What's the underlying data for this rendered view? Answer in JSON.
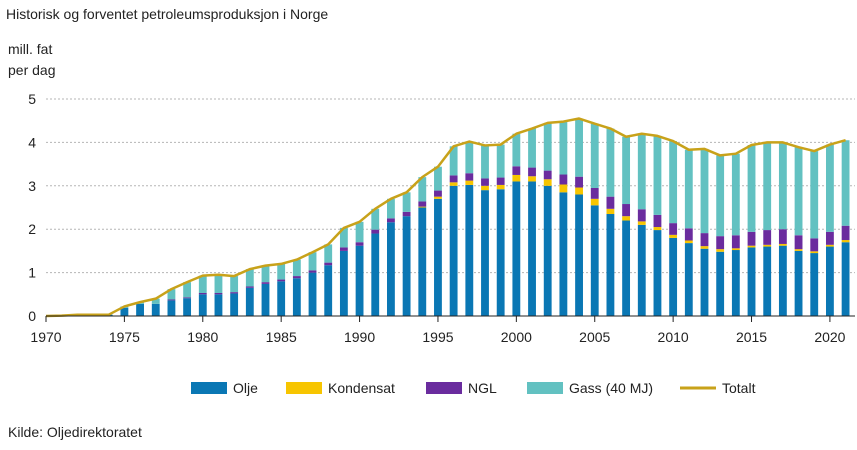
{
  "chart_data": {
    "type": "bar",
    "title": "Historisk og forventet petroleumsproduksjon i Norge",
    "ylabel_line1": "mill. fat",
    "ylabel_line2": "per dag",
    "ylim": [
      0,
      5
    ],
    "yticks": [
      0,
      1,
      2,
      3,
      4,
      5
    ],
    "xticks": [
      1970,
      1975,
      1980,
      1985,
      1990,
      1995,
      2000,
      2005,
      2010,
      2015,
      2020
    ],
    "grid": true,
    "legend_position": "bottom",
    "source": "Kilde: Oljedirektoratet",
    "x": [
      1971,
      1972,
      1973,
      1974,
      1975,
      1976,
      1977,
      1978,
      1979,
      1980,
      1981,
      1982,
      1983,
      1984,
      1985,
      1986,
      1987,
      1988,
      1989,
      1990,
      1991,
      1992,
      1993,
      1994,
      1995,
      1996,
      1997,
      1998,
      1999,
      2000,
      2001,
      2002,
      2003,
      2004,
      2005,
      2006,
      2007,
      2008,
      2009,
      2010,
      2011,
      2012,
      2013,
      2014,
      2015,
      2016,
      2017,
      2018,
      2019,
      2020,
      2021
    ],
    "series": [
      {
        "name": "Olje",
        "color": "#0a77b4",
        "stacked": true,
        "values": [
          0.01,
          0.03,
          0.03,
          0.03,
          0.19,
          0.28,
          0.28,
          0.36,
          0.41,
          0.5,
          0.5,
          0.52,
          0.65,
          0.74,
          0.8,
          0.87,
          1.0,
          1.17,
          1.5,
          1.62,
          1.9,
          2.16,
          2.3,
          2.5,
          2.7,
          3.0,
          3.02,
          2.9,
          2.92,
          3.1,
          3.1,
          3.0,
          2.85,
          2.8,
          2.55,
          2.35,
          2.2,
          2.1,
          1.98,
          1.8,
          1.68,
          1.55,
          1.48,
          1.52,
          1.58,
          1.6,
          1.62,
          1.5,
          1.45,
          1.6,
          1.7
        ]
      },
      {
        "name": "Kondensat",
        "color": "#f7c500",
        "stacked": true,
        "values": [
          0,
          0,
          0,
          0,
          0,
          0,
          0,
          0,
          0,
          0,
          0,
          0,
          0,
          0,
          0,
          0,
          0,
          0,
          0,
          0,
          0,
          0,
          0,
          0.02,
          0.05,
          0.08,
          0.1,
          0.1,
          0.1,
          0.15,
          0.12,
          0.15,
          0.18,
          0.16,
          0.15,
          0.12,
          0.1,
          0.08,
          0.07,
          0.07,
          0.06,
          0.06,
          0.06,
          0.04,
          0.04,
          0.04,
          0.04,
          0.04,
          0.04,
          0.04,
          0.05
        ]
      },
      {
        "name": "NGL",
        "color": "#6a2c9e",
        "stacked": true,
        "values": [
          0,
          0,
          0,
          0,
          0,
          0,
          0,
          0.02,
          0.02,
          0.03,
          0.03,
          0.03,
          0.03,
          0.04,
          0.04,
          0.05,
          0.05,
          0.06,
          0.08,
          0.08,
          0.09,
          0.09,
          0.1,
          0.12,
          0.14,
          0.16,
          0.17,
          0.17,
          0.17,
          0.2,
          0.2,
          0.2,
          0.23,
          0.25,
          0.25,
          0.28,
          0.28,
          0.28,
          0.28,
          0.27,
          0.28,
          0.3,
          0.3,
          0.3,
          0.32,
          0.34,
          0.34,
          0.32,
          0.3,
          0.3,
          0.33
        ]
      },
      {
        "name": "Gass (40 MJ)",
        "color": "#62c1c1",
        "stacked": true,
        "values": [
          0,
          0,
          0,
          0,
          0.03,
          0.04,
          0.12,
          0.24,
          0.35,
          0.4,
          0.42,
          0.37,
          0.4,
          0.38,
          0.36,
          0.38,
          0.42,
          0.42,
          0.45,
          0.47,
          0.48,
          0.45,
          0.45,
          0.56,
          0.55,
          0.67,
          0.73,
          0.76,
          0.76,
          0.75,
          0.9,
          1.1,
          1.22,
          1.34,
          1.48,
          1.57,
          1.55,
          1.74,
          1.82,
          1.89,
          1.81,
          1.94,
          1.86,
          1.88,
          2.0,
          2.02,
          2.0,
          2.03,
          2.01,
          2.01,
          1.97
        ]
      },
      {
        "name": "Totalt",
        "color": "#c8a21a",
        "type": "line",
        "values": [
          0.01,
          0.03,
          0.03,
          0.03,
          0.22,
          0.32,
          0.4,
          0.62,
          0.78,
          0.93,
          0.95,
          0.92,
          1.08,
          1.16,
          1.2,
          1.3,
          1.47,
          1.65,
          2.03,
          2.17,
          2.47,
          2.7,
          2.85,
          3.2,
          3.44,
          3.91,
          4.02,
          3.93,
          3.95,
          4.2,
          4.32,
          4.45,
          4.48,
          4.55,
          4.43,
          4.32,
          4.13,
          4.2,
          4.15,
          4.03,
          3.83,
          3.85,
          3.7,
          3.74,
          3.94,
          4.0,
          4.0,
          3.89,
          3.8,
          3.95,
          4.05
        ]
      }
    ]
  }
}
